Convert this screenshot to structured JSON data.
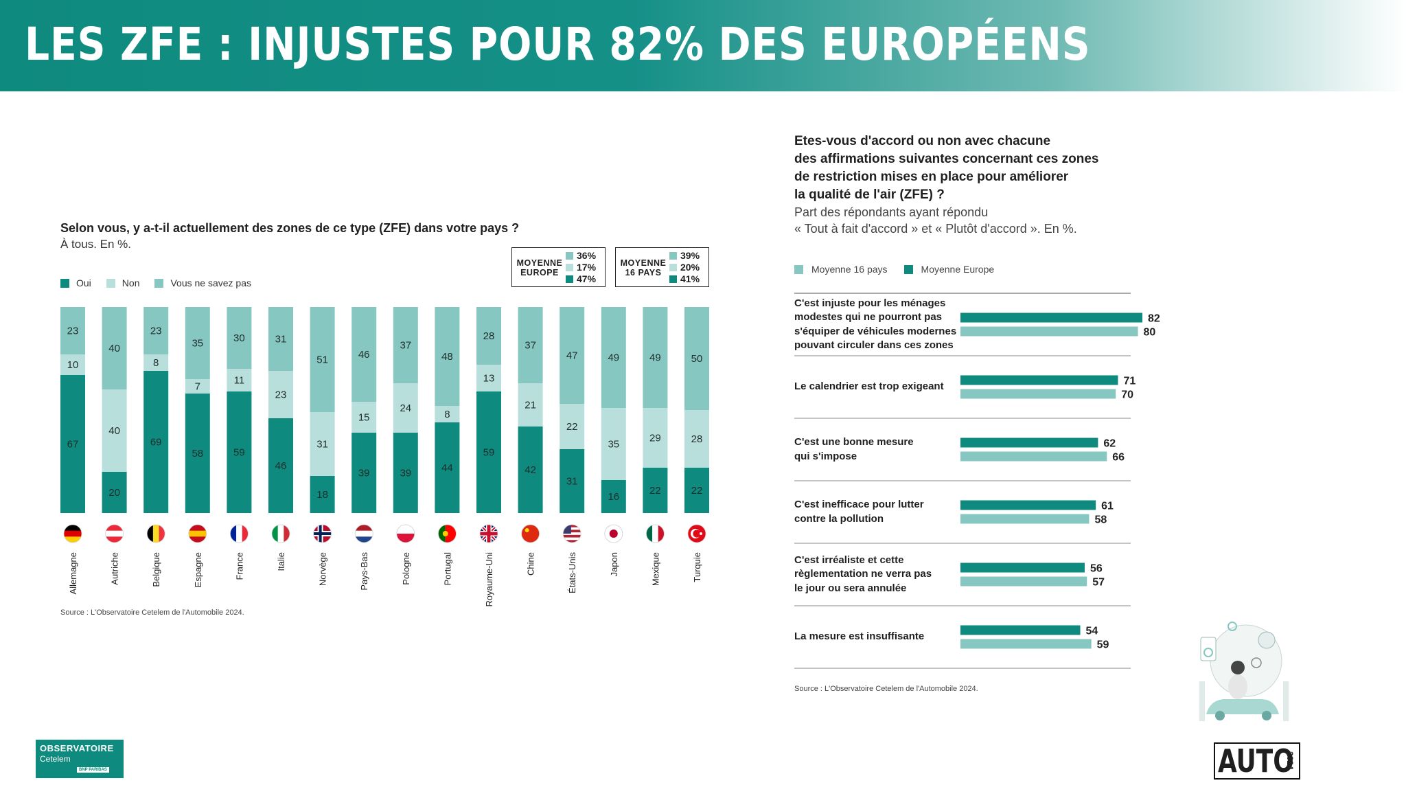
{
  "header": {
    "title": "LES ZFE : INJUSTES POUR 82% DES EUROPÉENS"
  },
  "colors": {
    "oui": "#0f8a7e",
    "non": "#b9dfdc",
    "nsp": "#86c7c1",
    "europe": "#0f8a7e",
    "pays16": "#86c7c1"
  },
  "chart_data": [
    {
      "type": "bar",
      "stacked": true,
      "title": "Selon vous, y a-t-il actuellement des zones de ce type (ZFE) dans votre pays ?",
      "subtitle": "À tous. En %.",
      "categories": [
        "Allemagne",
        "Autriche",
        "Belgique",
        "Espagne",
        "France",
        "Italie",
        "Norvège",
        "Pays-Bas",
        "Pologne",
        "Portugal",
        "Royaume-Uni",
        "Chine",
        "États-Unis",
        "Japon",
        "Mexique",
        "Turquie"
      ],
      "series": [
        {
          "name": "Oui",
          "values": [
            67,
            20,
            69,
            58,
            59,
            46,
            18,
            39,
            39,
            44,
            59,
            42,
            31,
            16,
            22,
            22
          ]
        },
        {
          "name": "Non",
          "values": [
            10,
            40,
            8,
            7,
            11,
            23,
            31,
            15,
            24,
            8,
            13,
            21,
            22,
            35,
            29,
            28
          ]
        },
        {
          "name": "Vous ne savez pas",
          "values": [
            23,
            40,
            23,
            35,
            30,
            31,
            51,
            46,
            37,
            48,
            28,
            37,
            47,
            49,
            49,
            50
          ]
        }
      ],
      "ylim": [
        0,
        100
      ],
      "legend": "top-left",
      "averages": [
        {
          "label": "MOYENNE EUROPE",
          "values": [
            "36%",
            "17%",
            "47%"
          ]
        },
        {
          "label": "MOYENNE 16 PAYS",
          "values": [
            "39%",
            "20%",
            "41%"
          ]
        }
      ],
      "source": "Source : L'Observatoire Cetelem de l'Automobile 2024."
    },
    {
      "type": "bar",
      "orientation": "horizontal",
      "title": "Etes-vous d'accord ou non avec chacune des affirmations suivantes concernant ces zones de restriction mises en place pour améliorer la qualité de l'air (ZFE) ?",
      "subtitle": "Part des répondants ayant répondu « Tout à fait d'accord » et « Plutôt d'accord ». En %.",
      "categories": [
        "C'est injuste pour les ménages modestes qui ne pourront pas s'équiper de véhicules modernes pouvant circuler dans ces zones",
        "Le calendrier est trop exigeant",
        "C'est une bonne mesure qui s'impose",
        "C'est inefficace pour lutter contre la pollution",
        "C'est irréaliste et cette règlementation ne verra pas le jour ou sera annulée",
        "La mesure est insuffisante"
      ],
      "series": [
        {
          "name": "Moyenne Europe",
          "values": [
            82,
            71,
            62,
            61,
            56,
            54
          ]
        },
        {
          "name": "Moyenne 16 pays",
          "values": [
            80,
            70,
            66,
            58,
            57,
            59
          ]
        }
      ],
      "legend": "top-left",
      "source": "Source : L'Observatoire Cetelem de l'Automobile 2024."
    }
  ],
  "left_legend": [
    "Oui",
    "Non",
    "Vous ne savez pas"
  ],
  "right_legend": [
    "Moyenne 16 pays",
    "Moyenne Europe"
  ],
  "right_labels": [
    [
      "C'est injuste pour les ménages",
      "modestes qui ne pourront pas",
      "s'équiper de véhicules modernes",
      "pouvant circuler dans ces zones"
    ],
    [
      "Le calendrier est trop exigeant"
    ],
    [
      "C'est une bonne mesure",
      "qui s'impose"
    ],
    [
      "C'est inefficace pour lutter",
      "contre la pollution"
    ],
    [
      "C'est irréaliste et cette",
      "règlementation ne verra pas",
      "le jour ou sera annulée"
    ],
    [
      "La mesure est insuffisante"
    ]
  ],
  "right_title_lines": [
    "Etes-vous d'accord ou non avec chacune",
    "des affirmations suivantes concernant ces zones",
    "de restriction mises en place pour améliorer",
    "la qualité de l'air (ZFE) ?"
  ],
  "right_sub_lines": [
    "Part des répondants ayant répondu",
    "« Tout à fait d'accord » et « Plutôt d'accord ». En %."
  ],
  "avg_europe": {
    "label_l1": "MOYENNE",
    "label_l2": "EUROPE",
    "v1": "36%",
    "v2": "17%",
    "v3": "47%"
  },
  "avg_16": {
    "label_l1": "MOYENNE",
    "label_l2": "16 PAYS",
    "v1": "39%",
    "v2": "20%",
    "v3": "41%"
  },
  "logos": {
    "observatoire_l1": "OBSERVATOIRE",
    "observatoire_l2": "Cetelem",
    "observatoire_l3": "BNP PARIBAS",
    "auto": "AUTO",
    "year": "2024"
  }
}
